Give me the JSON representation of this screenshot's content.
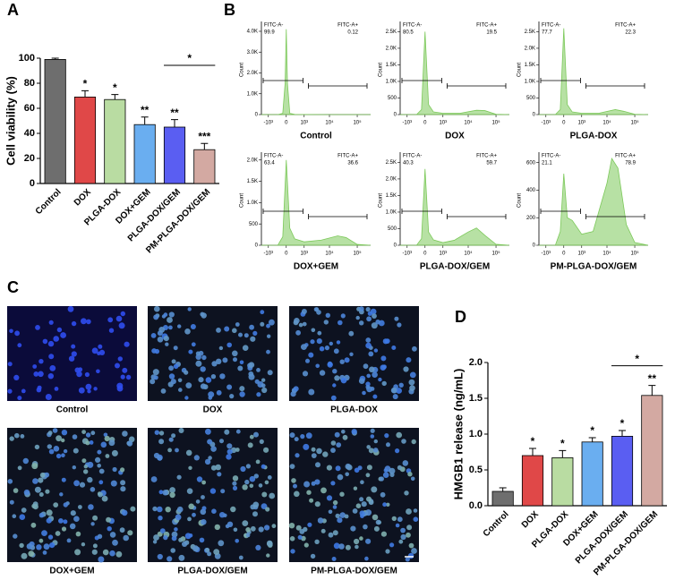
{
  "chart_data": [
    {
      "type": "bar",
      "panel": "A",
      "ylabel": "Cell viability (%)",
      "categories": [
        "Control",
        "DOX",
        "PLGA-DOX",
        "DOX+GEM",
        "PLGA-DOX/GEM",
        "PM-PLGA-DOX/GEM"
      ],
      "values": [
        99,
        69,
        67,
        47,
        45,
        27
      ],
      "errors": [
        1,
        5,
        4,
        6,
        6,
        5
      ],
      "significance": [
        null,
        "*",
        "*",
        "**",
        "**",
        "***"
      ],
      "colors": [
        "#6e6e6e",
        "#e04848",
        "#b9dca2",
        "#6aaef0",
        "#5a5ef2",
        "#d3a9a2"
      ],
      "ylim": [
        0,
        100
      ],
      "yticks": [
        0,
        20,
        40,
        60,
        80,
        100
      ],
      "comparison": {
        "categories": [
          "PLGA-DOX/GEM",
          "PM-PLGA-DOX/GEM"
        ],
        "label": "*"
      }
    },
    {
      "type": "density",
      "panel": "B",
      "title": "Control",
      "ylabel": "Count",
      "color": "#7cc95a",
      "x": [
        -2000,
        -300,
        -100,
        -30,
        0,
        30,
        100,
        300,
        1000,
        10000,
        300000
      ],
      "values": [
        0,
        0,
        60,
        1500,
        4100,
        1500,
        60,
        10,
        5,
        0,
        0
      ],
      "ylim": [
        0,
        4300
      ],
      "yticks": [
        0,
        {
          "value": 1000,
          "label": "1.0K"
        },
        {
          "value": 2000,
          "label": "2.0K"
        },
        {
          "value": 3000,
          "label": "3.0K"
        },
        {
          "value": 4000,
          "label": "4.0K"
        }
      ],
      "xlim": [
        -2000,
        300000
      ],
      "xticks": [
        {
          "value": -1000,
          "label": "-10³"
        },
        0,
        {
          "value": 1000,
          "label": "10³"
        },
        {
          "value": 10000,
          "label": "10⁴"
        },
        {
          "value": 100000,
          "label": "10⁵"
        }
      ],
      "gates": [
        {
          "name": "FITC-A-",
          "percent": 99.9
        },
        {
          "name": "FITC-A+",
          "percent": 0.12
        }
      ]
    },
    {
      "type": "density",
      "title": "DOX",
      "ylabel": "Count",
      "color": "#7cc95a",
      "x": [
        -2000,
        -300,
        -100,
        0,
        100,
        300,
        1000,
        5000,
        20000,
        40000,
        100000,
        300000
      ],
      "values": [
        0,
        0,
        150,
        2500,
        300,
        80,
        40,
        40,
        130,
        120,
        10,
        0
      ],
      "ylim": [
        0,
        2700
      ],
      "yticks": [
        0,
        500,
        {
          "value": 1000,
          "label": "1.0K"
        },
        {
          "value": 1500,
          "label": "1.5K"
        },
        {
          "value": 2000,
          "label": "2.0K"
        },
        {
          "value": 2500,
          "label": "2.5K"
        }
      ],
      "xlim": [
        -2000,
        300000
      ],
      "xticks": [
        {
          "value": -1000,
          "label": "-10³"
        },
        0,
        {
          "value": 1000,
          "label": "10³"
        },
        {
          "value": 10000,
          "label": "10⁴"
        },
        {
          "value": 100000,
          "label": "10⁵"
        }
      ],
      "gates": [
        {
          "name": "FITC-A-",
          "percent": 80.5
        },
        {
          "name": "FITC-A+",
          "percent": 19.5
        }
      ]
    },
    {
      "type": "density",
      "title": "PLGA-DOX",
      "ylabel": "Count",
      "color": "#7cc95a",
      "x": [
        -2000,
        -300,
        -100,
        0,
        100,
        300,
        1000,
        5000,
        20000,
        40000,
        100000,
        300000
      ],
      "values": [
        0,
        0,
        150,
        2600,
        300,
        80,
        40,
        40,
        150,
        100,
        10,
        0
      ],
      "ylim": [
        0,
        2700
      ],
      "yticks": [
        0,
        500,
        {
          "value": 1000,
          "label": "1.0K"
        },
        {
          "value": 1500,
          "label": "1.5K"
        },
        {
          "value": 2000,
          "label": "2.0K"
        },
        {
          "value": 2500,
          "label": "2.5K"
        }
      ],
      "xlim": [
        -2000,
        300000
      ],
      "xticks": [
        {
          "value": -1000,
          "label": "-10³"
        },
        0,
        {
          "value": 1000,
          "label": "10³"
        },
        {
          "value": 10000,
          "label": "10⁴"
        },
        {
          "value": 100000,
          "label": "10⁵"
        }
      ],
      "gates": [
        {
          "name": "FITC-A-",
          "percent": 77.7
        },
        {
          "name": "FITC-A+",
          "percent": 22.3
        }
      ]
    },
    {
      "type": "density",
      "title": "DOX+GEM",
      "ylabel": "Count",
      "color": "#7cc95a",
      "x": [
        -2000,
        -300,
        -100,
        0,
        100,
        300,
        1000,
        5000,
        20000,
        40000,
        100000,
        300000
      ],
      "values": [
        0,
        0,
        200,
        2000,
        400,
        150,
        80,
        120,
        220,
        180,
        20,
        0
      ],
      "ylim": [
        0,
        2100
      ],
      "yticks": [
        0,
        500,
        {
          "value": 1000,
          "label": "1.0K"
        },
        {
          "value": 1500,
          "label": "1.5K"
        },
        {
          "value": 2000,
          "label": "2.0K"
        }
      ],
      "xlim": [
        -2000,
        300000
      ],
      "xticks": [
        {
          "value": -1000,
          "label": "-10³"
        },
        0,
        {
          "value": 1000,
          "label": "10³"
        },
        {
          "value": 10000,
          "label": "10⁴"
        },
        {
          "value": 100000,
          "label": "10⁵"
        }
      ],
      "gates": [
        {
          "name": "FITC-A-",
          "percent": 63.4
        },
        {
          "name": "FITC-A+",
          "percent": 36.6
        }
      ]
    },
    {
      "type": "density",
      "title": "PLGA-DOX/GEM",
      "ylabel": "Count",
      "color": "#7cc95a",
      "x": [
        -2000,
        -300,
        -100,
        0,
        100,
        300,
        1000,
        3000,
        10000,
        20000,
        40000,
        100000,
        300000
      ],
      "values": [
        0,
        0,
        200,
        2300,
        400,
        160,
        80,
        150,
        400,
        520,
        300,
        30,
        0
      ],
      "ylim": [
        0,
        2700
      ],
      "yticks": [
        0,
        500,
        {
          "value": 1000,
          "label": "1.0K"
        },
        {
          "value": 1500,
          "label": "1.5K"
        },
        {
          "value": 2000,
          "label": "2.0K"
        },
        {
          "value": 2500,
          "label": "2.5K"
        }
      ],
      "xlim": [
        -2000,
        300000
      ],
      "xticks": [
        {
          "value": -1000,
          "label": "-10³"
        },
        0,
        {
          "value": 1000,
          "label": "10³"
        },
        {
          "value": 10000,
          "label": "10⁴"
        },
        {
          "value": 100000,
          "label": "10⁵"
        }
      ],
      "gates": [
        {
          "name": "FITC-A-",
          "percent": 40.3
        },
        {
          "name": "FITC-A+",
          "percent": 59.7
        }
      ]
    },
    {
      "type": "density",
      "title": "PM-PLGA-DOX/GEM",
      "ylabel": "Count",
      "color": "#7cc95a",
      "x": [
        -2000,
        -300,
        -100,
        0,
        100,
        300,
        1000,
        3000,
        10000,
        15000,
        25000,
        50000,
        100000,
        300000
      ],
      "values": [
        0,
        0,
        100,
        520,
        200,
        180,
        80,
        100,
        450,
        630,
        560,
        150,
        20,
        0
      ],
      "ylim": [
        0,
        650
      ],
      "yticks": [
        0,
        200,
        400,
        600
      ],
      "xlim": [
        -2000,
        300000
      ],
      "xticks": [
        {
          "value": -1000,
          "label": "-10³"
        },
        0,
        {
          "value": 1000,
          "label": "10³"
        },
        {
          "value": 10000,
          "label": "10⁴"
        },
        {
          "value": 100000,
          "label": "10⁵"
        }
      ],
      "gates": [
        {
          "name": "FITC-A-",
          "percent": 21.1
        },
        {
          "name": "FITC-A+",
          "percent": 78.9
        }
      ]
    },
    {
      "type": "bar",
      "panel": "D",
      "ylabel": "HMGB1 release (ng/mL)",
      "categories": [
        "Control",
        "DOX",
        "PLGA-DOX",
        "DOX+GEM",
        "PLGA-DOX/GEM",
        "PM-PLGA-DOX/GEM"
      ],
      "values": [
        0.2,
        0.7,
        0.67,
        0.89,
        0.97,
        1.54
      ],
      "errors": [
        0.05,
        0.1,
        0.1,
        0.06,
        0.08,
        0.14
      ],
      "significance": [
        null,
        "*",
        "*",
        "*",
        "*",
        "**"
      ],
      "colors": [
        "#6e6e6e",
        "#e04848",
        "#b9dca2",
        "#6aaef0",
        "#5a5ef2",
        "#d3a9a2"
      ],
      "ylim": [
        0,
        2
      ],
      "yticks": [
        {
          "value": 0,
          "label": "0.0"
        },
        0.5,
        {
          "value": 1,
          "label": "1.0"
        },
        1.5,
        {
          "value": 2,
          "label": "2.0"
        }
      ],
      "comparison": {
        "categories": [
          "PLGA-DOX/GEM",
          "PM-PLGA-DOX/GEM"
        ],
        "label": "*"
      }
    }
  ],
  "image_panel": {
    "panel": "C",
    "labels": [
      "Control",
      "DOX",
      "PLGA-DOX",
      "DOX+GEM",
      "PLGA-DOX/GEM",
      "PM-PLGA-DOX/GEM"
    ]
  }
}
